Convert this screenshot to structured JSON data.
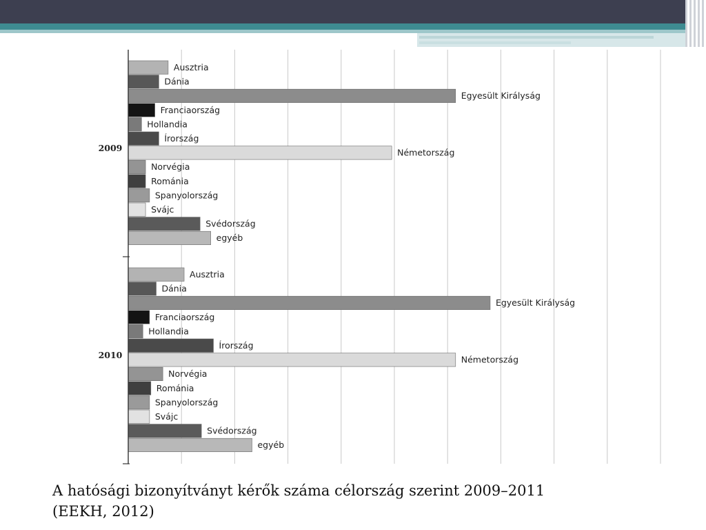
{
  "chart_data": {
    "type": "bar",
    "orientation": "horizontal",
    "title": "",
    "xlabel": "",
    "ylabel": "",
    "grid": true,
    "xlim": [
      0,
      400
    ],
    "groups": [
      {
        "label": "2009",
        "categories": [
          "Ausztria",
          "Dánia",
          "Egyesült Királyság",
          "Franciaország",
          "Hollandia",
          "Írország",
          "Németország",
          "Norvégia",
          "Románia",
          "Spanyolország",
          "Svájc",
          "Svédország",
          "egyéb"
        ],
        "values": [
          30,
          23,
          246,
          20,
          10,
          23,
          198,
          13,
          13,
          16,
          13,
          54,
          62
        ],
        "shades": [
          "#b3b3b3",
          "#575757",
          "#8c8c8c",
          "#141414",
          "#7a7a7a",
          "#4a4a4a",
          "#dadada",
          "#949494",
          "#3f3f3f",
          "#9a9a9a",
          "#e2e2e2",
          "#5a5a5a",
          "#b8b8b8"
        ]
      },
      {
        "label": "2010",
        "categories": [
          "Ausztria",
          "Dánia",
          "Egyesült Királyság",
          "Franciaország",
          "Hollandia",
          "Írország",
          "Németország",
          "Norvégia",
          "Románia",
          "Spanyolország",
          "Svájc",
          "Svédország",
          "egyéb"
        ],
        "values": [
          42,
          21,
          272,
          16,
          11,
          64,
          246,
          26,
          17,
          16,
          16,
          55,
          93
        ],
        "shades": [
          "#b3b3b3",
          "#575757",
          "#8c8c8c",
          "#141414",
          "#7a7a7a",
          "#4a4a4a",
          "#dadada",
          "#949494",
          "#3f3f3f",
          "#9a9a9a",
          "#e2e2e2",
          "#5a5a5a",
          "#b8b8b8"
        ]
      }
    ]
  },
  "caption": {
    "line1": "A hatósági bizonyítványt kérők száma célország szerint 2009–2011",
    "line2": "(EEKH, 2012)"
  }
}
